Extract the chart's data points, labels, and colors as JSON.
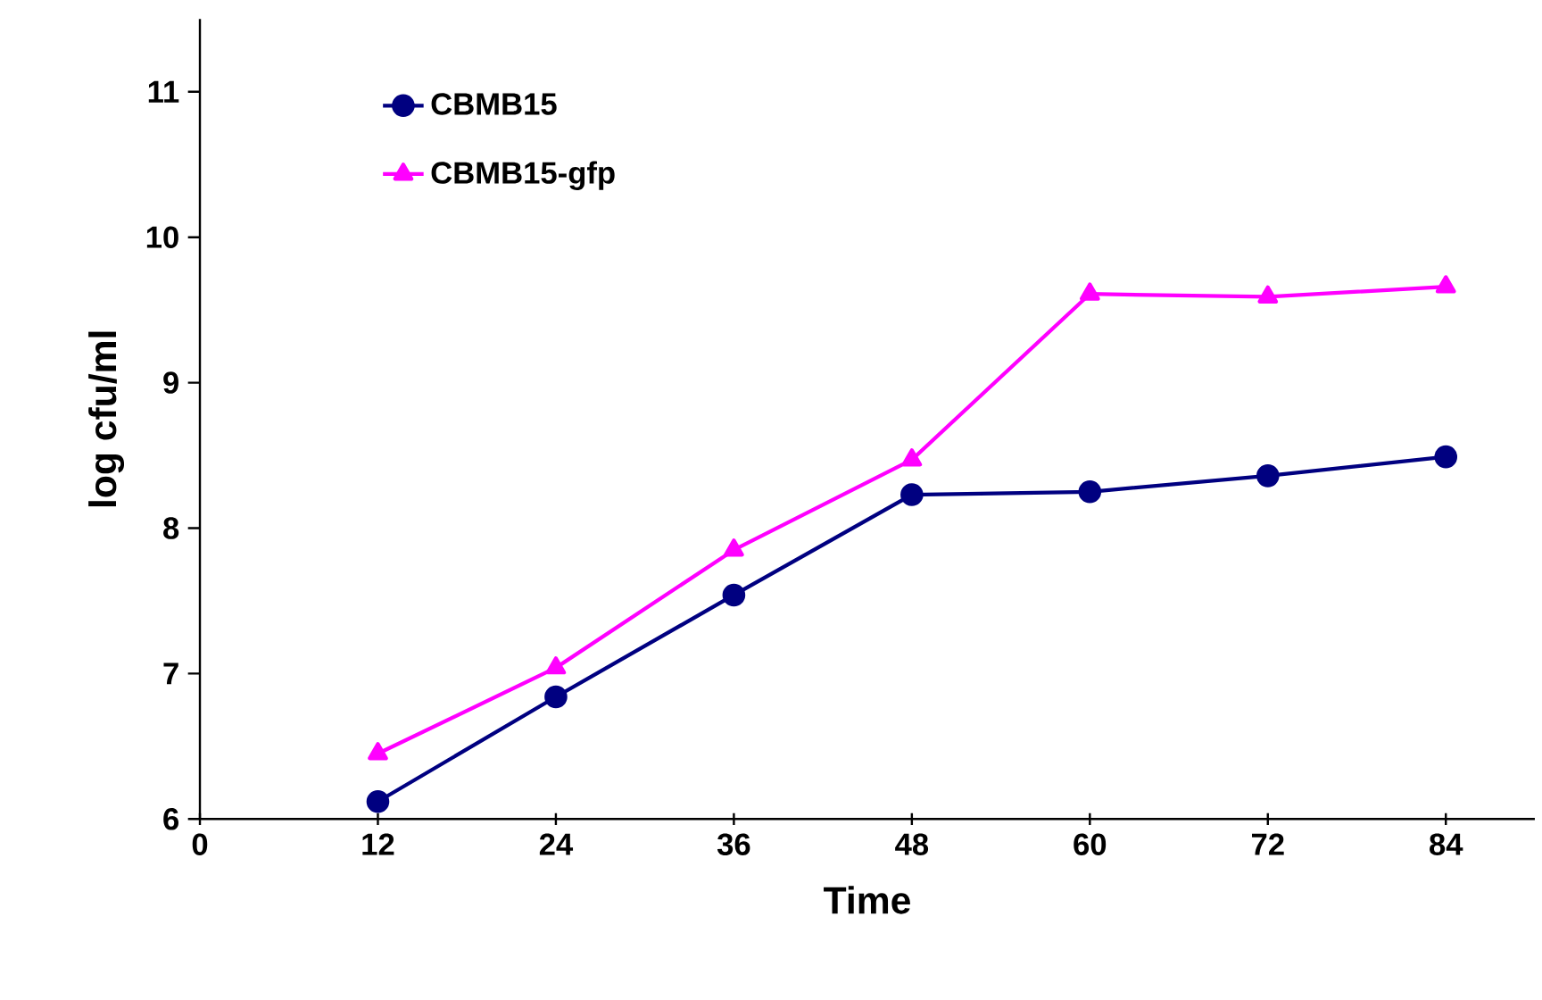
{
  "chart_data": {
    "type": "line",
    "xlabel": "Time",
    "ylabel": "log cfu/ml",
    "x": [
      12,
      24,
      36,
      48,
      60,
      72,
      84
    ],
    "xlim": [
      0,
      90
    ],
    "xticks": [
      0,
      12,
      24,
      36,
      48,
      60,
      72,
      84
    ],
    "ylim": [
      6,
      11.5
    ],
    "yticks": [
      6,
      7,
      8,
      9,
      10,
      11
    ],
    "legend": "top left",
    "grid": false,
    "series": [
      {
        "name": "CBMB15",
        "color": "#000080",
        "marker": "circle",
        "values": [
          6.12,
          6.84,
          7.54,
          8.23,
          8.25,
          8.36,
          8.49
        ]
      },
      {
        "name": "CBMB15-gfp",
        "color": "#ff00ff",
        "marker": "triangle",
        "values": [
          6.45,
          7.04,
          7.85,
          8.47,
          9.61,
          9.59,
          9.66
        ]
      }
    ]
  }
}
